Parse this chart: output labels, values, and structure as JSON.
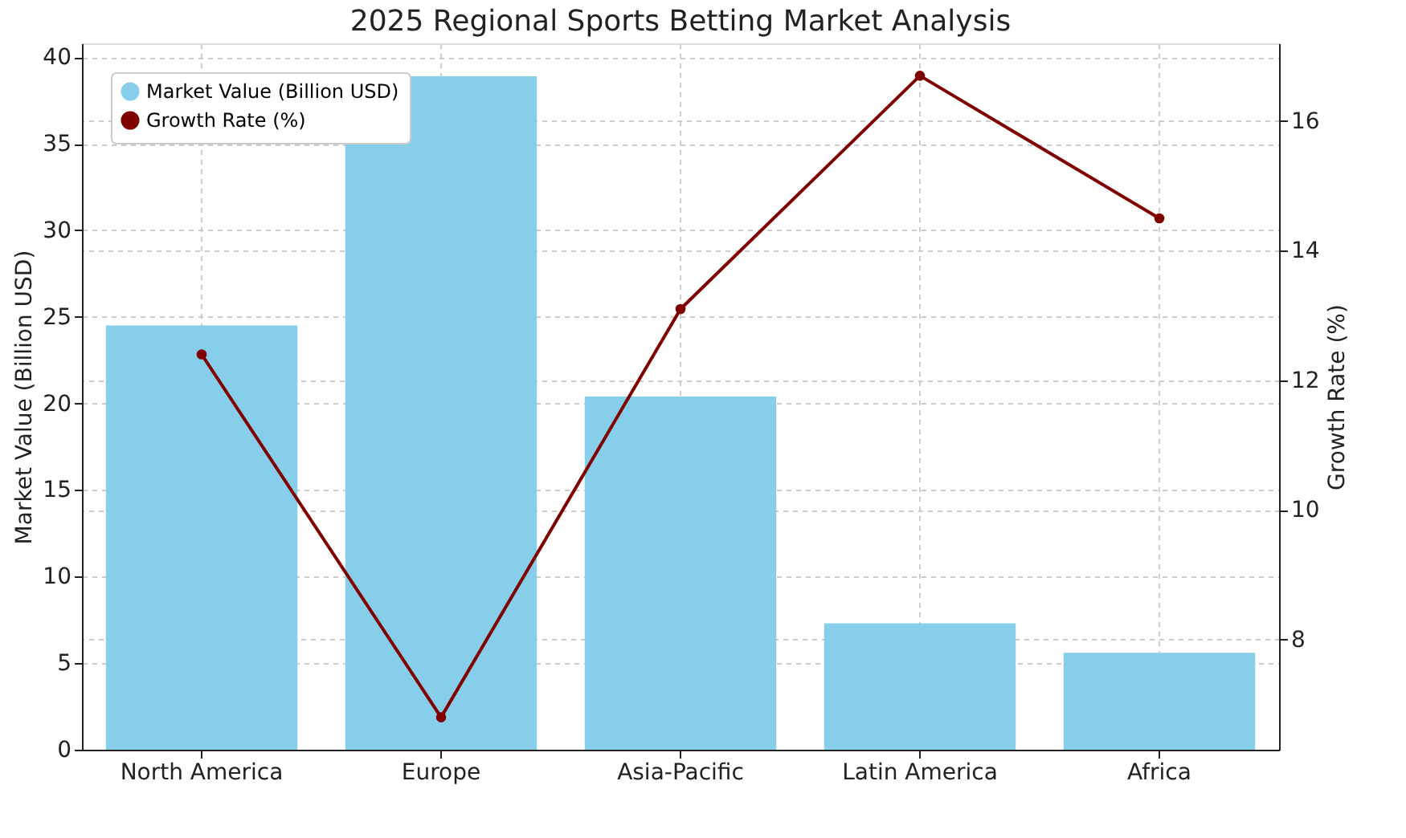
{
  "chart_data": {
    "type": "bar",
    "title": "2025 Regional Sports Betting Market Analysis",
    "categories": [
      "North America",
      "Europe",
      "Asia-Pacific",
      "Latin America",
      "Africa"
    ],
    "ylabel": "Market Value (Billion USD)",
    "y2label": "Growth Rate (%)",
    "series": [
      {
        "name": "Market Value (Billion USD)",
        "color": "#87ceeb",
        "values": [
          24.5,
          38.9,
          20.4,
          7.3,
          5.6
        ]
      },
      {
        "name": "Growth Rate (%)",
        "type": "line",
        "axis": "y2",
        "color": "#800000",
        "marker": "circle",
        "values": [
          12.4,
          6.8,
          13.1,
          16.7,
          14.5
        ]
      }
    ],
    "ylim": [
      0,
      40.8
    ],
    "yticks": [
      0,
      5,
      10,
      15,
      20,
      25,
      30,
      35,
      40
    ],
    "y2lim": [
      6.3,
      17.2
    ],
    "y2ticks": [
      8,
      10,
      12,
      14,
      16
    ],
    "grid": true,
    "legend": "top left"
  }
}
